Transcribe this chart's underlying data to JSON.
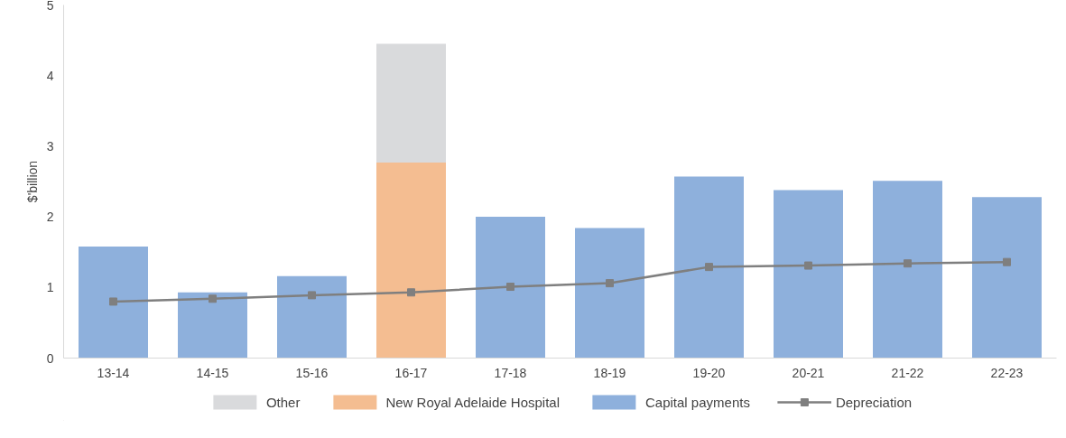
{
  "chart_data": {
    "type": "bar",
    "stacked": true,
    "ylabel": "$'billion",
    "categories": [
      "13-14",
      "14-15",
      "15-16",
      "16-17",
      "17-18",
      "18-19",
      "19-20",
      "20-21",
      "21-22",
      "22-23"
    ],
    "series": [
      {
        "name": "Capital payments",
        "color": "#8eb0dc",
        "values": [
          1.58,
          0.93,
          1.16,
          null,
          2.0,
          1.84,
          2.57,
          2.38,
          2.51,
          2.28
        ]
      },
      {
        "name": "New Royal Adelaide Hospital",
        "color": "#f4bd91",
        "values": [
          null,
          null,
          null,
          2.77,
          null,
          null,
          null,
          null,
          null,
          null
        ]
      },
      {
        "name": "Other",
        "color": "#d9dadc",
        "values": [
          null,
          null,
          null,
          1.68,
          null,
          null,
          null,
          null,
          null,
          null
        ]
      },
      {
        "name": "Depreciation",
        "type": "line",
        "color": "#7f7f7f",
        "marker": "square",
        "values": [
          0.8,
          0.84,
          0.89,
          0.93,
          1.01,
          1.06,
          1.29,
          1.31,
          1.34,
          1.36
        ]
      }
    ],
    "ylim": [
      0,
      5
    ],
    "yticks": [
      0,
      1,
      2,
      3,
      4,
      5
    ],
    "grid": false,
    "legend": "bottom"
  }
}
